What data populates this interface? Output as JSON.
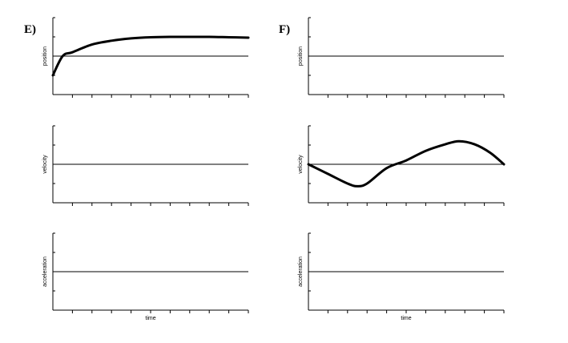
{
  "chart_data": [
    {
      "type": "line",
      "panel": "E)",
      "charts": [
        {
          "ylabel": "position",
          "xlabel": "",
          "zero_line": true,
          "ylim": [
            -1,
            1
          ],
          "x": [
            0,
            0.5,
            1,
            2,
            3,
            4,
            5,
            6,
            7,
            8,
            9,
            10
          ],
          "y": [
            -0.5,
            0.0,
            0.1,
            0.3,
            0.4,
            0.46,
            0.49,
            0.5,
            0.5,
            0.5,
            0.49,
            0.48
          ]
        },
        {
          "ylabel": "velocity",
          "xlabel": "",
          "zero_line": true,
          "ylim": [
            -1,
            1
          ],
          "x": [],
          "y": []
        },
        {
          "ylabel": "acceleration",
          "xlabel": "time",
          "zero_line": true,
          "ylim": [
            -1,
            1
          ],
          "x": [],
          "y": []
        }
      ]
    },
    {
      "type": "line",
      "panel": "F)",
      "charts": [
        {
          "ylabel": "position",
          "xlabel": "",
          "zero_line": true,
          "ylim": [
            -1,
            1
          ],
          "x": [],
          "y": []
        },
        {
          "ylabel": "velocity",
          "xlabel": "",
          "zero_line": true,
          "ylim": [
            -1,
            1
          ],
          "x": [
            0,
            1,
            2,
            2.5,
            3,
            4,
            5,
            6,
            7,
            7.7,
            8.5,
            9.3,
            10
          ],
          "y": [
            0.0,
            -0.25,
            -0.5,
            -0.57,
            -0.5,
            -0.1,
            0.1,
            0.35,
            0.52,
            0.6,
            0.52,
            0.3,
            0.0
          ]
        },
        {
          "ylabel": "acceleration",
          "xlabel": "time",
          "zero_line": true,
          "ylim": [
            -1,
            1
          ],
          "x": [],
          "y": []
        }
      ]
    }
  ]
}
